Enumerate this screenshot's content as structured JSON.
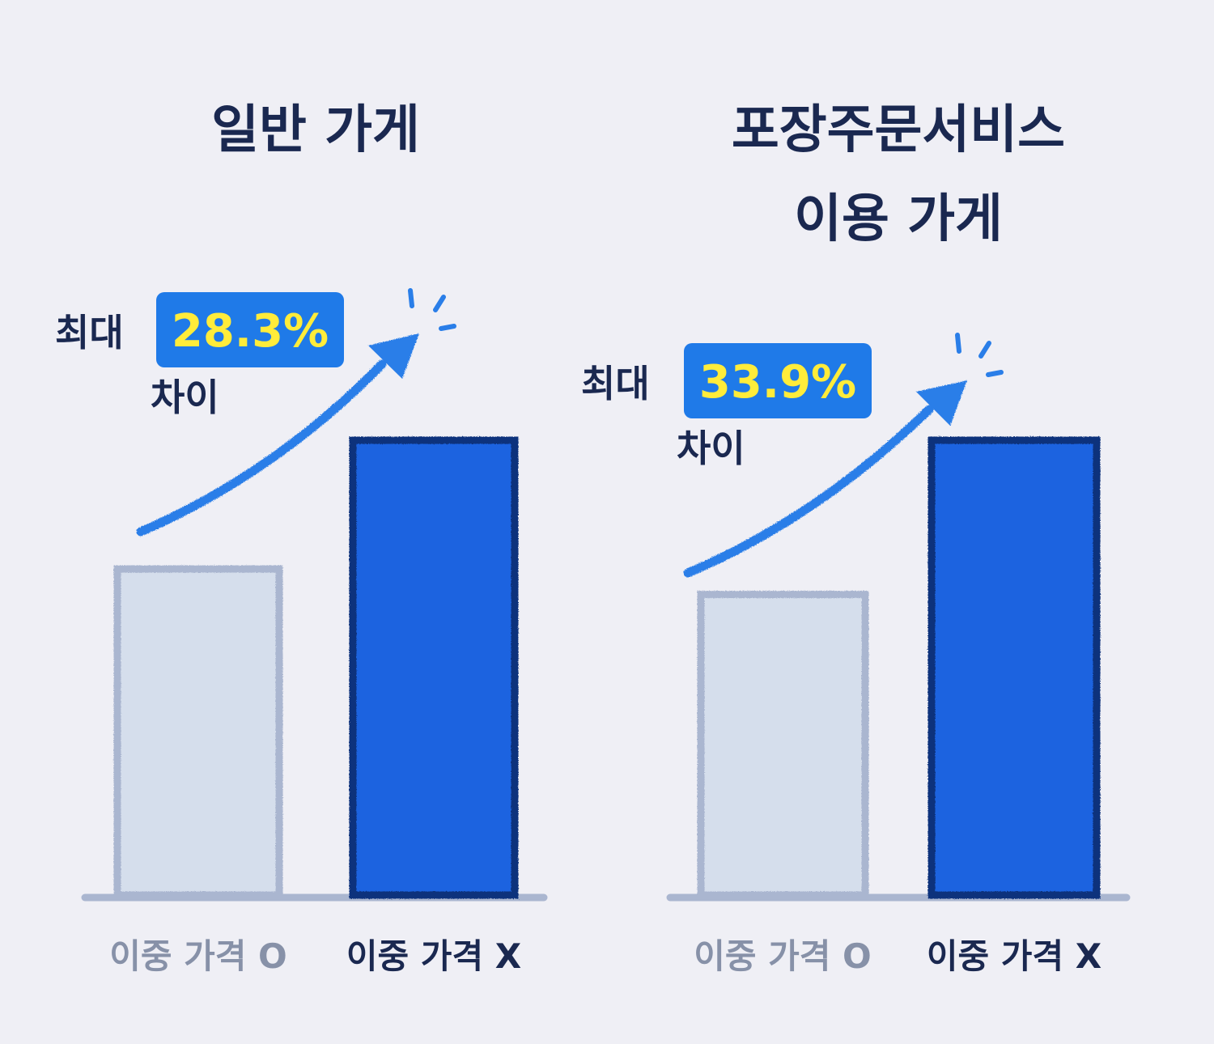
{
  "colors": {
    "background": "#efeff5",
    "bar_light": "#d5deec",
    "bar_light_border": "#aab6d0",
    "bar_dark": "#1a63e0",
    "bar_dark_border": "#0c327c",
    "baseline": "#aab6d0",
    "badge": "#1f7ae8",
    "badge_text": "#ffec3a",
    "title_text": "#1a2850",
    "label_muted": "#8791a8",
    "arrow": "#2a7ee8"
  },
  "chart_data": [
    {
      "type": "bar",
      "title": "일반 가게",
      "categories": [
        "이중 가격 O",
        "이중 가격 X"
      ],
      "values": [
        71.7,
        100
      ],
      "ylim": [
        0,
        100
      ],
      "grid": false,
      "annotation": {
        "prefix": "최대",
        "value": "28.3%",
        "suffix": "차이"
      }
    },
    {
      "type": "bar",
      "title": "포장주문서비스 이용 가게",
      "categories": [
        "이중 가격 O",
        "이중 가격 X"
      ],
      "values": [
        66.1,
        100
      ],
      "ylim": [
        0,
        100
      ],
      "grid": false,
      "annotation": {
        "prefix": "최대",
        "value": "33.9%",
        "suffix": "차이"
      }
    }
  ]
}
